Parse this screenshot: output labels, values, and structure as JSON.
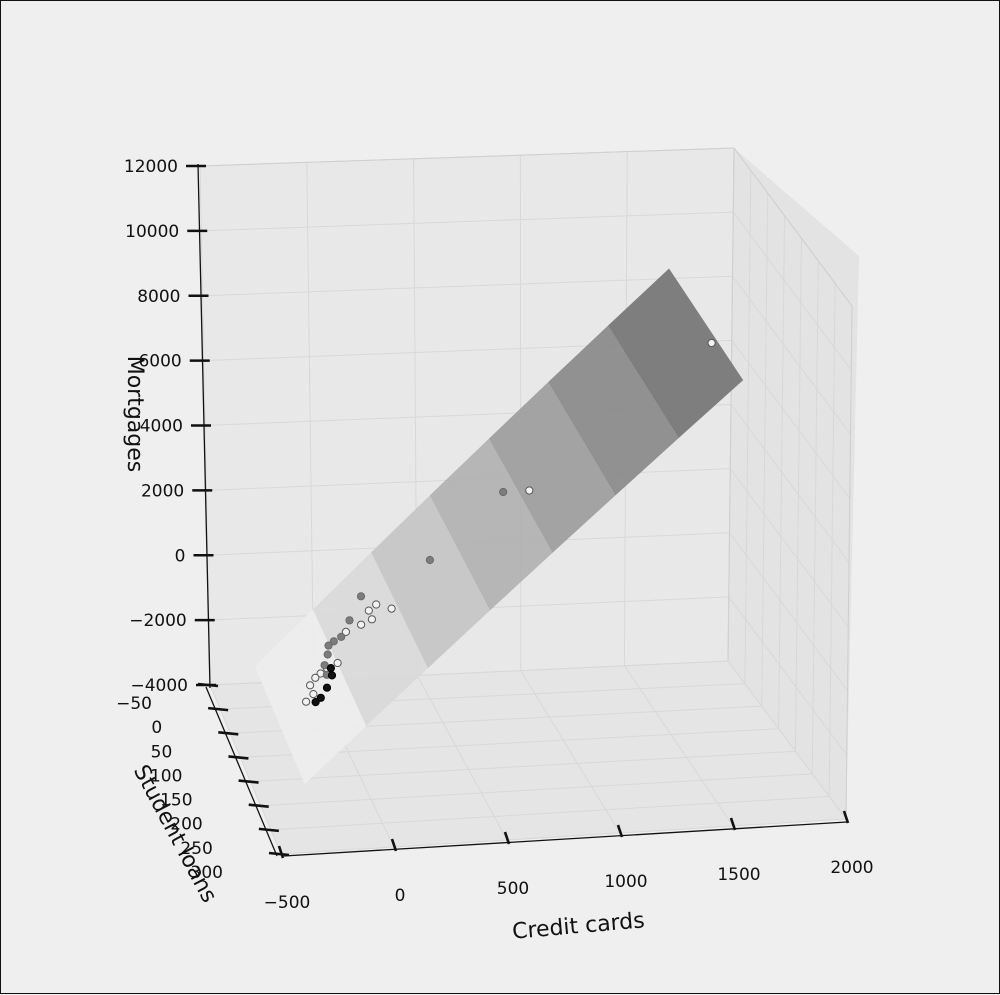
{
  "chart_data": {
    "type": "scatter",
    "projection": "3d",
    "xlabel": "Credit cards",
    "ylabel": "Student loans",
    "zlabel": "Mortgages",
    "x_ticks": [
      "−500",
      "0",
      "500",
      "1000",
      "1500",
      "2000"
    ],
    "y_ticks": [
      "−50",
      "0",
      "50",
      "100",
      "150",
      "200",
      "250",
      "300"
    ],
    "z_ticks": [
      "−4000",
      "−2000",
      "0",
      "2000",
      "4000",
      "6000",
      "8000",
      "10000",
      "12000"
    ],
    "xlim": [
      -500,
      2000
    ],
    "ylim": [
      -50,
      300
    ],
    "zlim": [
      -4000,
      12000
    ],
    "grid": true,
    "legend": "none",
    "fitted_plane": {
      "present": true,
      "x_range": [
        -280,
        1700
      ],
      "mortgage_range": [
        -3500,
        8300
      ],
      "colormap": "grayscale (light at low values, dark at high values)"
    },
    "series": [
      {
        "marker": "hollow",
        "points": [
          {
            "x": 1560,
            "y": 180,
            "z": 9300
          },
          {
            "x": 820,
            "y": 120,
            "z": 4100
          },
          {
            "x": 220,
            "y": 90,
            "z": 200
          },
          {
            "x": 160,
            "y": 80,
            "z": 200
          },
          {
            "x": 120,
            "y": 85,
            "z": 100
          },
          {
            "x": 150,
            "y": 70,
            "z": -400
          },
          {
            "x": 110,
            "y": 60,
            "z": -700
          },
          {
            "x": 60,
            "y": 40,
            "z": -1200
          },
          {
            "x": 30,
            "y": 30,
            "z": -2300
          },
          {
            "x": -10,
            "y": 20,
            "z": -2600
          },
          {
            "x": -30,
            "y": 10,
            "z": -2900
          },
          {
            "x": -50,
            "y": 5,
            "z": -3100
          },
          {
            "x": -70,
            "y": 0,
            "z": -3400
          },
          {
            "x": -60,
            "y": 5,
            "z": -3600
          },
          {
            "x": -90,
            "y": 0,
            "z": -3900
          }
        ]
      },
      {
        "marker": "filled-gray",
        "points": [
          {
            "x": 800,
            "y": 40,
            "z": 2900
          },
          {
            "x": 480,
            "y": 20,
            "z": 600
          },
          {
            "x": 160,
            "y": 15,
            "z": -500
          },
          {
            "x": 110,
            "y": 10,
            "z": -1300
          },
          {
            "x": 70,
            "y": 10,
            "z": -1800
          },
          {
            "x": 40,
            "y": 5,
            "z": -2000
          },
          {
            "x": 20,
            "y": 0,
            "z": -2200
          },
          {
            "x": 10,
            "y": 5,
            "z": -2400
          },
          {
            "x": 0,
            "y": 0,
            "z": -2800
          },
          {
            "x": 10,
            "y": 0,
            "z": -3100
          }
        ]
      },
      {
        "marker": "filled-black",
        "points": [
          {
            "x": 30,
            "y": 0,
            "z": -2900
          },
          {
            "x": 40,
            "y": -5,
            "z": -3200
          },
          {
            "x": 10,
            "y": 0,
            "z": -3500
          },
          {
            "x": -20,
            "y": 0,
            "z": -3800
          },
          {
            "x": -40,
            "y": -5,
            "z": -4000
          }
        ]
      }
    ]
  }
}
